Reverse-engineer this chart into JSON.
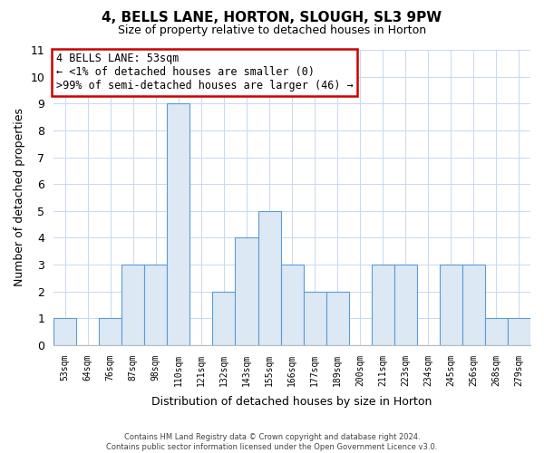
{
  "title": "4, BELLS LANE, HORTON, SLOUGH, SL3 9PW",
  "subtitle": "Size of property relative to detached houses in Horton",
  "xlabel": "Distribution of detached houses by size in Horton",
  "ylabel": "Number of detached properties",
  "categories": [
    "53sqm",
    "64sqm",
    "76sqm",
    "87sqm",
    "98sqm",
    "110sqm",
    "121sqm",
    "132sqm",
    "143sqm",
    "155sqm",
    "166sqm",
    "177sqm",
    "189sqm",
    "200sqm",
    "211sqm",
    "223sqm",
    "234sqm",
    "245sqm",
    "256sqm",
    "268sqm",
    "279sqm"
  ],
  "values": [
    1,
    0,
    1,
    3,
    3,
    9,
    0,
    2,
    4,
    5,
    3,
    2,
    2,
    0,
    3,
    3,
    0,
    3,
    3,
    1,
    1
  ],
  "bar_fill_color": "#dce9f5",
  "bar_edge_color": "#5b9bd5",
  "annotation_text_line1": "4 BELLS LANE: 53sqm",
  "annotation_text_line2": "← <1% of detached houses are smaller (0)",
  "annotation_text_line3": ">99% of semi-detached houses are larger (46) →",
  "annotation_box_color": "#ffffff",
  "annotation_box_edge": "#cc0000",
  "ylim": [
    0,
    11
  ],
  "yticks": [
    0,
    1,
    2,
    3,
    4,
    5,
    6,
    7,
    8,
    9,
    10,
    11
  ],
  "footer_line1": "Contains HM Land Registry data © Crown copyright and database right 2024.",
  "footer_line2": "Contains public sector information licensed under the Open Government Licence v3.0.",
  "background_color": "#ffffff",
  "grid_color": "#c8d8ee",
  "spine_color": "#aaaacc"
}
